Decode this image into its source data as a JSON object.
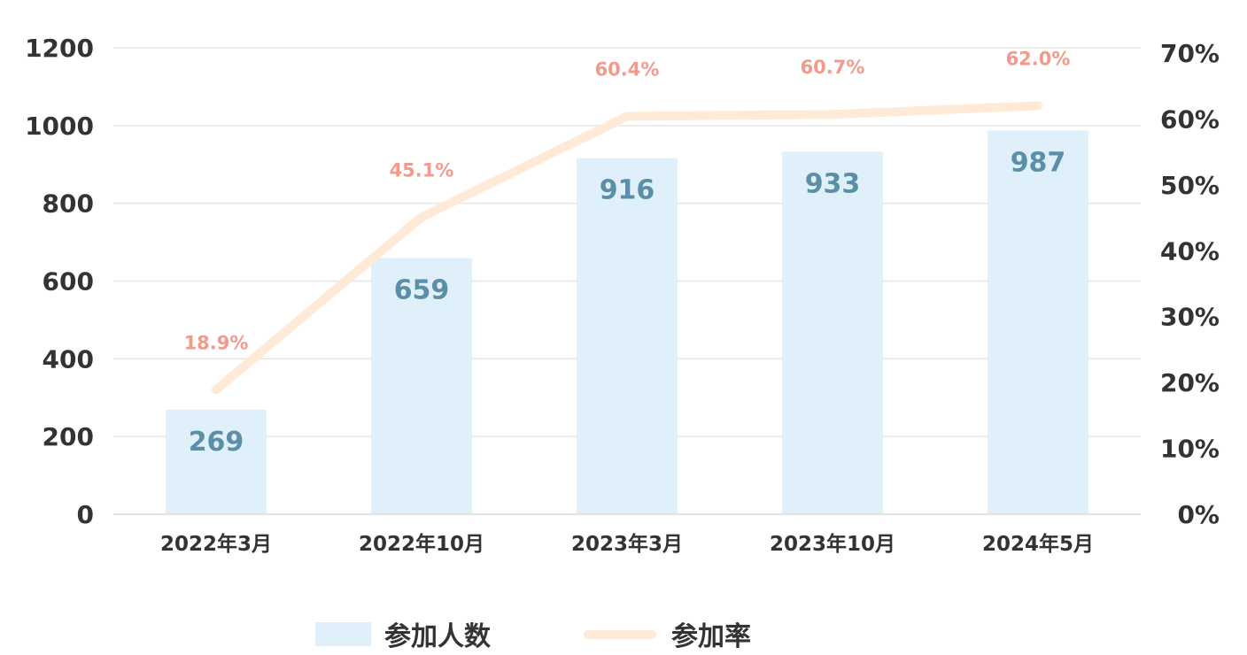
{
  "chart_data": {
    "type": "bar",
    "categories": [
      "2022年3月",
      "2022年10月",
      "2023年3月",
      "2023年10月",
      "2024年5月"
    ],
    "series": [
      {
        "name": "参加人数",
        "type": "bar",
        "axis": "left",
        "values": [
          269,
          659,
          916,
          933,
          987
        ],
        "labels": [
          "269",
          "659",
          "916",
          "933",
          "987"
        ],
        "color": "#dff0fa"
      },
      {
        "name": "参加率",
        "type": "line",
        "axis": "right",
        "values": [
          18.9,
          45.1,
          60.4,
          60.7,
          62.0
        ],
        "labels": [
          "18.9%",
          "45.1%",
          "60.4%",
          "60.7%",
          "62.0%"
        ],
        "color": "#feead6"
      }
    ],
    "y_left": {
      "ylim": [
        0,
        1200
      ],
      "ticks": [
        "0",
        "200",
        "400",
        "600",
        "800",
        "1000",
        "1200"
      ]
    },
    "y_right": {
      "ylim": [
        0,
        70
      ],
      "ticks": [
        "0%",
        "10%",
        "20%",
        "30%",
        "40%",
        "50%",
        "60%",
        "70%"
      ]
    },
    "grid": true,
    "legend": "bottom-center",
    "colors": {
      "bar_label": "#5b8fa8",
      "line_label": "#f29a8c",
      "grid": "#e6e6e6",
      "text": "#333333"
    }
  }
}
